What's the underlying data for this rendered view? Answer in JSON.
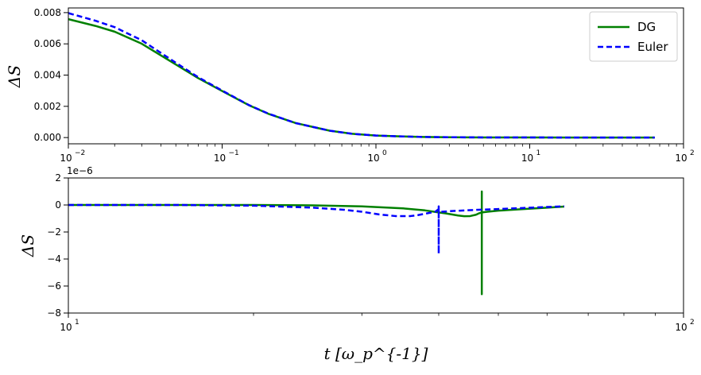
{
  "chart_data": [
    {
      "type": "line",
      "xscale": "log",
      "xlim": [
        0.01,
        100
      ],
      "ylim": [
        -0.0004,
        0.0083
      ],
      "xticks": [
        "10",
        "10",
        "10",
        "10",
        "10"
      ],
      "xtick_exponents": [
        "−2",
        "−1",
        "0",
        "1",
        "2"
      ],
      "yticks": [
        {
          "v": 0.0,
          "label": "0.000"
        },
        {
          "v": 0.002,
          "label": "0.002"
        },
        {
          "v": 0.004,
          "label": "0.004"
        },
        {
          "v": 0.006,
          "label": "0.006"
        },
        {
          "v": 0.008,
          "label": "0.008"
        }
      ],
      "ylabel": "ΔS",
      "legend": {
        "placement": "top-right"
      },
      "series": [
        {
          "name": "DG",
          "color": "#008000",
          "dash": "solid",
          "x": [
            0.01,
            0.015,
            0.02,
            0.03,
            0.05,
            0.07,
            0.1,
            0.15,
            0.2,
            0.3,
            0.5,
            0.7,
            1.0,
            1.5,
            2,
            3,
            5,
            10,
            20,
            40,
            65
          ],
          "y": [
            0.00758,
            0.00715,
            0.00678,
            0.00601,
            0.00468,
            0.0038,
            0.00298,
            0.00206,
            0.00152,
            0.00093,
            0.00044,
            0.00024,
            0.00013,
            7e-05,
            4e-05,
            2e-05,
            1e-05,
            5e-06,
            2e-06,
            1e-06,
            0.0
          ]
        },
        {
          "name": "Euler",
          "color": "#0000ff",
          "dash": "dashed",
          "x": [
            0.01,
            0.015,
            0.02,
            0.03,
            0.05,
            0.07,
            0.1,
            0.15,
            0.2,
            0.3,
            0.5,
            0.7,
            1.0,
            1.5,
            2,
            3,
            5,
            10,
            20,
            40,
            65
          ],
          "y": [
            0.00797,
            0.00748,
            0.00707,
            0.00623,
            0.00479,
            0.00386,
            0.00301,
            0.00207,
            0.00153,
            0.00093,
            0.00044,
            0.00024,
            0.00013,
            7e-05,
            4e-05,
            2e-05,
            1e-05,
            5e-06,
            2e-06,
            1e-06,
            0.0
          ]
        }
      ]
    },
    {
      "type": "line",
      "xscale": "log",
      "xlim": [
        10,
        100
      ],
      "ylim": [
        -8,
        2
      ],
      "yscale_note": "1e−6",
      "xticks": [
        "10",
        "10"
      ],
      "xtick_exponents": [
        "1",
        "2"
      ],
      "yticks": [
        {
          "v": -8,
          "label": "−8"
        },
        {
          "v": -6,
          "label": "−6"
        },
        {
          "v": -4,
          "label": "−4"
        },
        {
          "v": -2,
          "label": "−2"
        },
        {
          "v": 0,
          "label": "0"
        },
        {
          "v": 2,
          "label": "2"
        }
      ],
      "ylabel": "ΔS",
      "xlabel": "t [ω_p^{-1}]",
      "series": [
        {
          "name": "DG",
          "color": "#008000",
          "dash": "solid",
          "x": [
            10,
            15,
            20,
            25,
            30,
            35,
            38,
            40,
            41,
            42,
            43,
            44,
            45,
            46,
            46.5,
            47,
            47,
            47,
            47,
            47,
            48,
            50,
            55,
            60,
            64
          ],
          "y": [
            0.0,
            0.0,
            0.0,
            -0.03,
            -0.1,
            -0.25,
            -0.4,
            -0.55,
            -0.62,
            -0.7,
            -0.78,
            -0.83,
            -0.82,
            -0.72,
            -0.62,
            -0.55,
            1.0,
            -6.6,
            -0.6,
            -0.55,
            -0.5,
            -0.42,
            -0.3,
            -0.2,
            -0.12
          ]
        },
        {
          "name": "Euler",
          "color": "#0000ff",
          "dash": "dashed",
          "x": [
            10,
            15,
            20,
            25,
            28,
            30,
            32,
            34,
            36,
            37,
            38,
            39,
            39.5,
            40,
            40,
            40,
            40,
            40.5,
            42,
            45,
            50,
            55,
            60,
            64
          ],
          "y": [
            0.0,
            0.0,
            -0.05,
            -0.2,
            -0.35,
            -0.5,
            -0.7,
            -0.82,
            -0.82,
            -0.75,
            -0.65,
            -0.55,
            -0.5,
            -0.3,
            -3.6,
            -0.1,
            -0.5,
            -0.5,
            -0.45,
            -0.38,
            -0.3,
            -0.22,
            -0.15,
            -0.1
          ]
        }
      ]
    }
  ]
}
